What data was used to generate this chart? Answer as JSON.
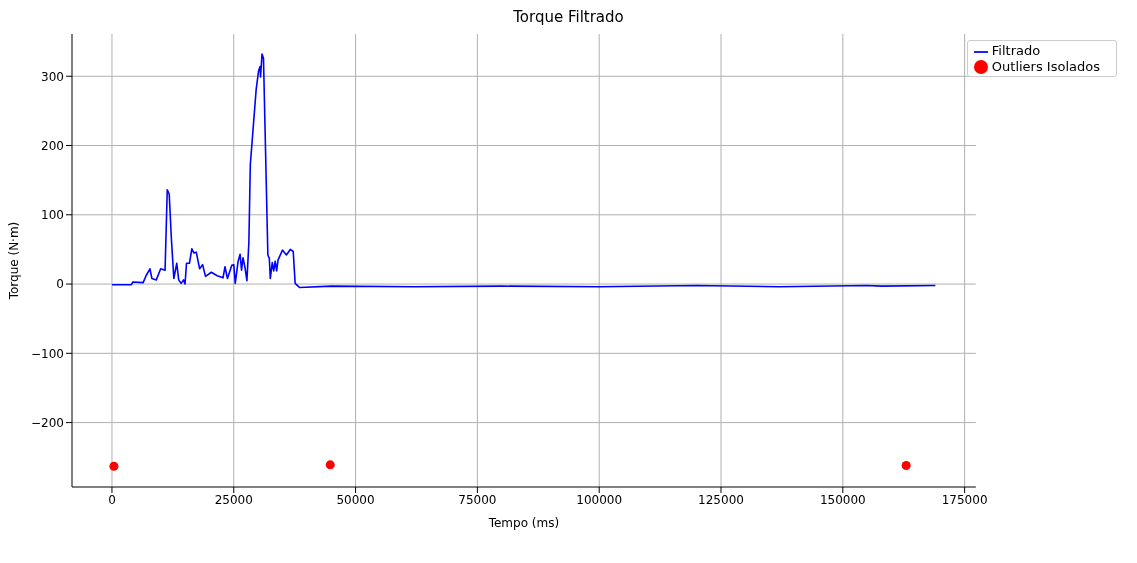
{
  "chart_data": {
    "type": "line",
    "title": "Torque Filtrado",
    "xlabel": "Tempo (ms)",
    "ylabel": "Torque (N·m)",
    "xlim": [
      -8200,
      177300
    ],
    "ylim": [
      -293,
      361
    ],
    "xticks": [
      0,
      25000,
      50000,
      75000,
      100000,
      125000,
      150000,
      175000
    ],
    "yticks": [
      {
        "value": -200,
        "label": "−200"
      },
      {
        "value": -100,
        "label": "−100"
      },
      0,
      100,
      200,
      300
    ],
    "grid": true,
    "legend": "top right",
    "series": [
      {
        "name": "Filtrado",
        "color": "#0000ff",
        "marker": "none",
        "line_style": "solid",
        "x": [
          0,
          4000,
          4300,
          6400,
          7000,
          7800,
          8200,
          9100,
          10000,
          10900,
          11350,
          11750,
          12200,
          12700,
          13300,
          13700,
          14200,
          14700,
          15000,
          15300,
          15900,
          16400,
          16800,
          17300,
          18000,
          18600,
          19200,
          20400,
          21600,
          22800,
          23200,
          23700,
          24600,
          25000,
          25300,
          25900,
          26300,
          26600,
          26900,
          27300,
          27700,
          28100,
          28400,
          29000,
          29600,
          30100,
          30400,
          30500,
          30800,
          31100,
          32000,
          32300,
          32500,
          32900,
          33200,
          33500,
          33800,
          34100,
          35000,
          35800,
          36600,
          37200,
          37600,
          38200,
          38500,
          45000,
          62000,
          80000,
          100000,
          120000,
          137000,
          155000,
          158000,
          169000
        ],
        "values": [
          -1,
          -1,
          3,
          2,
          12,
          22,
          8,
          6,
          22,
          20,
          136,
          130,
          65,
          8,
          30,
          6,
          1,
          6,
          0,
          30,
          30,
          51,
          45,
          46,
          22,
          28,
          11,
          17,
          12,
          9,
          25,
          8,
          27,
          28,
          1,
          33,
          43,
          20,
          38,
          24,
          5,
          60,
          173,
          227,
          281,
          308,
          314,
          299,
          332,
          326,
          42,
          37,
          8,
          31,
          19,
          33,
          19,
          35,
          49,
          42,
          50,
          47,
          1,
          -3,
          -5,
          -3,
          -4,
          -3,
          -4,
          -2,
          -4,
          -2,
          -3,
          -2
        ]
      },
      {
        "name": "Outliers Isolados",
        "type": "scatter",
        "color": "#ff0000",
        "marker": "circle",
        "x": [
          400,
          44800,
          163000
        ],
        "values": [
          -263,
          -261,
          -262
        ]
      }
    ]
  }
}
